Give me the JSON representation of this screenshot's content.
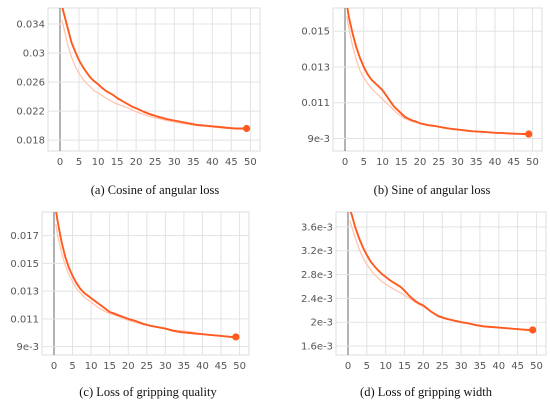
{
  "chart_data": [
    {
      "type": "line",
      "caption": "(a) Cosine of angular loss",
      "xticks": [
        0,
        5,
        10,
        15,
        20,
        25,
        30,
        35,
        40,
        45,
        50
      ],
      "yticks": [
        {
          "value": 0.018,
          "label": "0.018"
        },
        {
          "value": 0.022,
          "label": "0.022"
        },
        {
          "value": 0.026,
          "label": "0.026"
        },
        {
          "value": 0.03,
          "label": "0.03"
        },
        {
          "value": 0.034,
          "label": "0.034"
        }
      ],
      "xlim": [
        0,
        52
      ],
      "ylim": [
        0.0165,
        0.0362
      ],
      "grid": true,
      "series": [
        {
          "style": "smoothed",
          "color": "#ff5a1f",
          "x": [
            0.5,
            1,
            2,
            3,
            4,
            5,
            6,
            7,
            8,
            9,
            10,
            11,
            12,
            13,
            14,
            15,
            16,
            17,
            18,
            19,
            20,
            22,
            24,
            26,
            28,
            30,
            32,
            34,
            36,
            38,
            40,
            42,
            44,
            46,
            48,
            49
          ],
          "y": [
            0.0365,
            0.0355,
            0.0335,
            0.0315,
            0.0302,
            0.029,
            0.0281,
            0.0273,
            0.0266,
            0.0261,
            0.0257,
            0.0252,
            0.0248,
            0.0245,
            0.0242,
            0.0238,
            0.0235,
            0.0232,
            0.0229,
            0.0226,
            0.0224,
            0.0219,
            0.0215,
            0.0212,
            0.0209,
            0.0207,
            0.0205,
            0.0203,
            0.0201,
            0.02,
            0.0199,
            0.0198,
            0.0197,
            0.0196,
            0.0196,
            0.0196
          ]
        },
        {
          "style": "raw",
          "color": "#ffc2ad",
          "x": [
            0.5,
            1,
            2,
            3,
            4,
            5,
            6,
            7,
            8,
            9,
            10,
            12,
            14,
            16,
            18,
            20,
            24,
            28,
            32,
            36,
            40,
            44,
            48
          ],
          "y": [
            0.0345,
            0.0335,
            0.0312,
            0.0295,
            0.0282,
            0.0272,
            0.0264,
            0.0258,
            0.0253,
            0.0248,
            0.0245,
            0.0238,
            0.0232,
            0.0228,
            0.0224,
            0.0219,
            0.0212,
            0.0207,
            0.0203,
            0.02,
            0.0198,
            0.0196,
            0.0195
          ]
        }
      ],
      "endpoint": {
        "x": 49,
        "y": 0.0196
      }
    },
    {
      "type": "line",
      "caption": "(b) Sine of angular loss",
      "xticks": [
        0,
        5,
        10,
        15,
        20,
        25,
        30,
        35,
        40,
        45,
        50
      ],
      "yticks": [
        {
          "value": 0.009,
          "label": "9e-3"
        },
        {
          "value": 0.011,
          "label": "0.011"
        },
        {
          "value": 0.013,
          "label": "0.013"
        },
        {
          "value": 0.015,
          "label": "0.015"
        }
      ],
      "xlim": [
        0,
        52
      ],
      "ylim": [
        0.0083,
        0.0163
      ],
      "grid": true,
      "series": [
        {
          "style": "smoothed",
          "color": "#ff5a1f",
          "x": [
            0.5,
            1,
            2,
            3,
            4,
            5,
            6,
            7,
            8,
            9,
            10,
            11,
            12,
            13,
            14,
            15,
            16,
            17,
            18,
            19,
            20,
            22,
            24,
            26,
            28,
            30,
            32,
            34,
            36,
            38,
            40,
            42,
            44,
            46,
            48,
            49
          ],
          "y": [
            0.0165,
            0.0158,
            0.0149,
            0.0141,
            0.0135,
            0.013,
            0.0126,
            0.0123,
            0.0121,
            0.0119,
            0.0117,
            0.0114,
            0.0111,
            0.0108,
            0.0106,
            0.0104,
            0.0102,
            0.0101,
            0.01,
            0.00994,
            0.00985,
            0.00975,
            0.0097,
            0.00962,
            0.00955,
            0.0095,
            0.00945,
            0.0094,
            0.00938,
            0.00935,
            0.00932,
            0.0093,
            0.00928,
            0.00926,
            0.00925,
            0.00925
          ]
        },
        {
          "style": "raw",
          "color": "#ffc2ad",
          "x": [
            0.5,
            1,
            2,
            3,
            4,
            5,
            6,
            7,
            8,
            9,
            10,
            12,
            14,
            16,
            18,
            20,
            24,
            28,
            32,
            36,
            40,
            44,
            48
          ],
          "y": [
            0.0158,
            0.0152,
            0.0142,
            0.0134,
            0.0128,
            0.0124,
            0.0121,
            0.0118,
            0.0116,
            0.0114,
            0.0112,
            0.0108,
            0.0104,
            0.0101,
            0.00995,
            0.00985,
            0.0097,
            0.00955,
            0.00945,
            0.00938,
            0.00932,
            0.00928,
            0.00924
          ]
        }
      ],
      "endpoint": {
        "x": 49,
        "y": 0.00925
      }
    },
    {
      "type": "line",
      "caption": "(c) Loss of gripping quality",
      "xticks": [
        0,
        5,
        10,
        15,
        20,
        25,
        30,
        35,
        40,
        45,
        50
      ],
      "yticks": [
        {
          "value": 0.009,
          "label": "9e-3"
        },
        {
          "value": 0.011,
          "label": "0.011"
        },
        {
          "value": 0.013,
          "label": "0.013"
        },
        {
          "value": 0.015,
          "label": "0.015"
        },
        {
          "value": 0.017,
          "label": "0.017"
        }
      ],
      "xlim": [
        0,
        52
      ],
      "ylim": [
        0.0084,
        0.0187
      ],
      "grid": true,
      "series": [
        {
          "style": "smoothed",
          "color": "#ff5a1f",
          "x": [
            0.5,
            1,
            2,
            3,
            4,
            5,
            6,
            7,
            8,
            9,
            10,
            11,
            12,
            13,
            14,
            15,
            16,
            17,
            18,
            19,
            20,
            22,
            24,
            26,
            28,
            30,
            32,
            34,
            36,
            38,
            40,
            42,
            44,
            46,
            48,
            49
          ],
          "y": [
            0.0188,
            0.018,
            0.0166,
            0.0155,
            0.0147,
            0.0141,
            0.0136,
            0.0132,
            0.0129,
            0.0127,
            0.0125,
            0.0123,
            0.0121,
            0.0119,
            0.0117,
            0.0115,
            0.0114,
            0.0113,
            0.0112,
            0.0111,
            0.011,
            0.01085,
            0.01065,
            0.0105,
            0.0104,
            0.0103,
            0.01015,
            0.01005,
            0.01,
            0.00995,
            0.0099,
            0.00985,
            0.0098,
            0.00975,
            0.0097,
            0.0097
          ]
        },
        {
          "style": "raw",
          "color": "#ffc2ad",
          "x": [
            0.5,
            1,
            2,
            3,
            4,
            5,
            6,
            7,
            8,
            9,
            10,
            12,
            14,
            16,
            18,
            20,
            24,
            28,
            32,
            36,
            40,
            44,
            48
          ],
          "y": [
            0.0178,
            0.017,
            0.0158,
            0.0149,
            0.0142,
            0.0137,
            0.0132,
            0.0129,
            0.0126,
            0.0124,
            0.0122,
            0.0118,
            0.0115,
            0.0113,
            0.0111,
            0.0109,
            0.0106,
            0.0104,
            0.0102,
            0.0101,
            0.0099,
            0.0098,
            0.0097
          ]
        }
      ],
      "endpoint": {
        "x": 49,
        "y": 0.0097
      }
    },
    {
      "type": "line",
      "caption": "(d) Loss of gripping width",
      "xticks": [
        0,
        5,
        10,
        15,
        20,
        25,
        30,
        35,
        40,
        45,
        50
      ],
      "yticks": [
        {
          "value": 0.0016,
          "label": "1.6e-3"
        },
        {
          "value": 0.002,
          "label": "2e-3"
        },
        {
          "value": 0.0024,
          "label": "2.4e-3"
        },
        {
          "value": 0.0028,
          "label": "2.8e-3"
        },
        {
          "value": 0.0032,
          "label": "3.2e-3"
        },
        {
          "value": 0.0036,
          "label": "3.6e-3"
        }
      ],
      "xlim": [
        0,
        52
      ],
      "ylim": [
        0.00145,
        0.00385
      ],
      "grid": true,
      "series": [
        {
          "style": "smoothed",
          "color": "#ff5a1f",
          "x": [
            0.5,
            1,
            2,
            3,
            4,
            5,
            6,
            7,
            8,
            9,
            10,
            11,
            12,
            13,
            14,
            15,
            16,
            17,
            18,
            19,
            20,
            22,
            24,
            26,
            28,
            30,
            32,
            34,
            36,
            38,
            40,
            42,
            44,
            46,
            48,
            49
          ],
          "y": [
            0.0039,
            0.0038,
            0.00358,
            0.0034,
            0.00325,
            0.00313,
            0.00302,
            0.00294,
            0.00287,
            0.00281,
            0.00276,
            0.00271,
            0.00267,
            0.00263,
            0.00259,
            0.00253,
            0.00246,
            0.0024,
            0.00235,
            0.00231,
            0.00228,
            0.00218,
            0.0021,
            0.00206,
            0.00203,
            0.002,
            0.00198,
            0.00195,
            0.00193,
            0.00192,
            0.00191,
            0.0019,
            0.00189,
            0.00188,
            0.00187,
            0.00187
          ]
        },
        {
          "style": "raw",
          "color": "#ffc2ad",
          "x": [
            0.5,
            1,
            2,
            3,
            4,
            5,
            6,
            7,
            8,
            9,
            10,
            12,
            14,
            16,
            18,
            20,
            24,
            28,
            32,
            36,
            40,
            44,
            48
          ],
          "y": [
            0.0037,
            0.0036,
            0.0034,
            0.00322,
            0.00308,
            0.00297,
            0.00288,
            0.0028,
            0.00274,
            0.00268,
            0.00264,
            0.00256,
            0.00249,
            0.00241,
            0.00233,
            0.00226,
            0.00211,
            0.00203,
            0.00198,
            0.00194,
            0.00191,
            0.00189,
            0.00187
          ]
        }
      ],
      "endpoint": {
        "x": 49,
        "y": 0.00187
      }
    }
  ]
}
